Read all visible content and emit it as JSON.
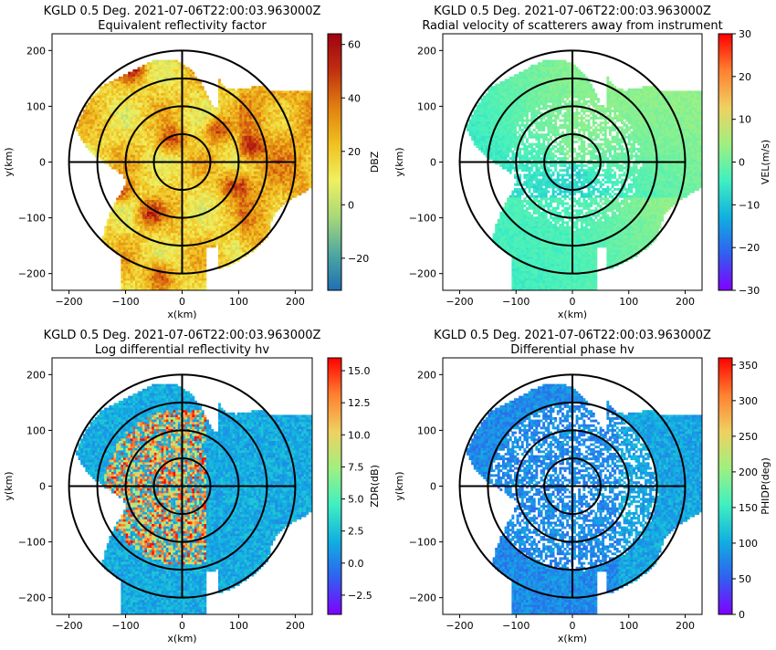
{
  "chart_data": [
    {
      "type": "heatmap",
      "title": "KGLD 0.5 Deg. 2021-07-06T22:00:03.963000Z",
      "subtitle": "Equivalent reflectivity factor",
      "xlabel": "x(km)",
      "ylabel": "y(km)",
      "xlim": [
        -230,
        230
      ],
      "ylim": [
        -230,
        230
      ],
      "xticks": [
        "−200",
        "−100",
        "0",
        "100",
        "200"
      ],
      "yticks": [
        "200",
        "100",
        "0",
        "−100",
        "−200"
      ],
      "range_rings_km": [
        50,
        100,
        150,
        200
      ],
      "colorbar": {
        "label": "DBZ",
        "vmin": -32,
        "vmax": 64,
        "ticks": [
          -20,
          0,
          20,
          40,
          60
        ],
        "tick_labels": [
          "−20",
          "0",
          "20",
          "40",
          "60"
        ],
        "colormap": [
          "#1f6fb4",
          "#4fa8a0",
          "#a8d878",
          "#f0f060",
          "#f0c020",
          "#e08010",
          "#c03010",
          "#a00010"
        ]
      },
      "grid": false,
      "field": "reflectivity"
    },
    {
      "type": "heatmap",
      "title": "KGLD 0.5 Deg. 2021-07-06T22:00:03.963000Z",
      "subtitle": "Radial velocity of scatterers away from instrument",
      "xlabel": "x(km)",
      "ylabel": "y(km)",
      "xlim": [
        -230,
        230
      ],
      "ylim": [
        -230,
        230
      ],
      "xticks": [
        "−200",
        "−100",
        "0",
        "100",
        "200"
      ],
      "yticks": [
        "200",
        "100",
        "0",
        "−100",
        "−200"
      ],
      "range_rings_km": [
        50,
        100,
        150,
        200
      ],
      "colorbar": {
        "label": "VEL(m/s)",
        "vmin": -30,
        "vmax": 30,
        "ticks": [
          -30,
          -20,
          -10,
          0,
          10,
          20,
          30
        ],
        "tick_labels": [
          "−30",
          "−20",
          "−10",
          "0",
          "10",
          "20",
          "30"
        ],
        "colormap": [
          "#8000ff",
          "#3060f0",
          "#10b0e0",
          "#40f0c0",
          "#a0f080",
          "#f0d060",
          "#ff8030",
          "#ff0000"
        ]
      },
      "grid": false,
      "field": "velocity"
    },
    {
      "type": "heatmap",
      "title": "KGLD 0.5 Deg. 2021-07-06T22:00:03.963000Z",
      "subtitle": "Log differential reflectivity hv",
      "xlabel": "x(km)",
      "ylabel": "y(km)",
      "xlim": [
        -230,
        230
      ],
      "ylim": [
        -230,
        230
      ],
      "xticks": [
        "−200",
        "−100",
        "0",
        "100",
        "200"
      ],
      "yticks": [
        "200",
        "100",
        "0",
        "−100",
        "−200"
      ],
      "range_rings_km": [
        50,
        100,
        150,
        200
      ],
      "colorbar": {
        "label": "ZDR(dB)",
        "vmin": -4,
        "vmax": 16,
        "ticks": [
          -2.5,
          0,
          2.5,
          5,
          7.5,
          10,
          12.5,
          15
        ],
        "tick_labels": [
          "−2.5",
          "0.0",
          "2.5",
          "5.0",
          "7.5",
          "10.0",
          "12.5",
          "15.0"
        ],
        "colormap": [
          "#8000ff",
          "#3060f0",
          "#10b0e0",
          "#40f0c0",
          "#a0f080",
          "#f0d060",
          "#ff8030",
          "#ff0000"
        ]
      },
      "grid": false,
      "field": "zdr"
    },
    {
      "type": "heatmap",
      "title": "KGLD 0.5 Deg. 2021-07-06T22:00:03.963000Z",
      "subtitle": "Differential phase hv",
      "xlabel": "x(km)",
      "ylabel": "y(km)",
      "xlim": [
        -230,
        230
      ],
      "ylim": [
        -230,
        230
      ],
      "xticks": [
        "−200",
        "−100",
        "0",
        "100",
        "200"
      ],
      "yticks": [
        "200",
        "100",
        "0",
        "−100",
        "−200"
      ],
      "range_rings_km": [
        50,
        100,
        150,
        200
      ],
      "colorbar": {
        "label": "PHIDP(deg)",
        "vmin": 0,
        "vmax": 360,
        "ticks": [
          0,
          50,
          100,
          150,
          200,
          250,
          300,
          350
        ],
        "tick_labels": [
          "0",
          "50",
          "100",
          "150",
          "200",
          "250",
          "300",
          "350"
        ],
        "colormap": [
          "#8000ff",
          "#3060f0",
          "#10b0e0",
          "#40f0c0",
          "#a0f080",
          "#f0d060",
          "#ff8030",
          "#ff0000"
        ]
      },
      "grid": false,
      "field": "phidp"
    }
  ]
}
